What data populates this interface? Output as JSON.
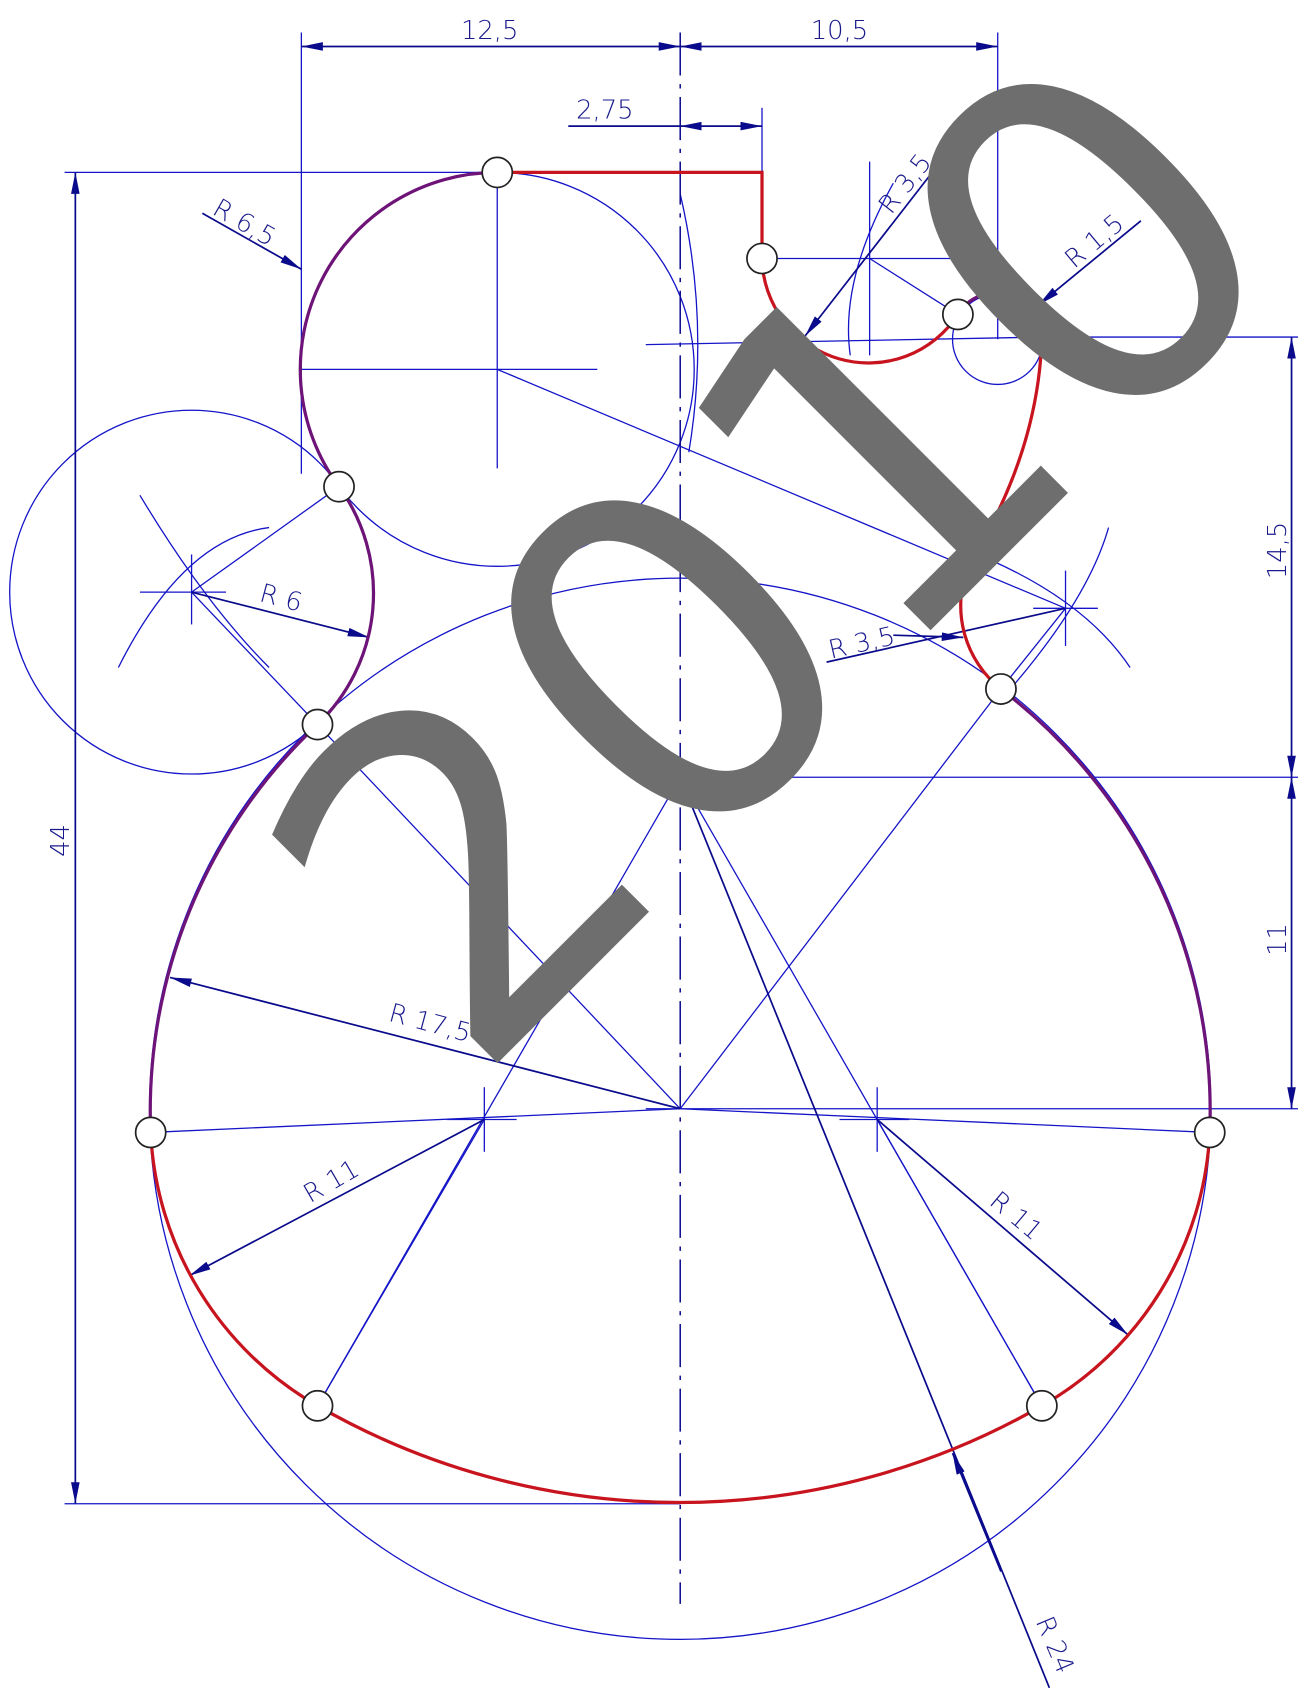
{
  "dimensions": [
    "12,5",
    "10,5",
    "2,75",
    "R 6,5",
    "R 3,5",
    "R 1,5",
    "R 6",
    "R 3,5",
    "14,5",
    "44",
    "11",
    "R 17,5",
    "R 11",
    "R 11",
    "R 24"
  ],
  "watermark": "2010"
}
